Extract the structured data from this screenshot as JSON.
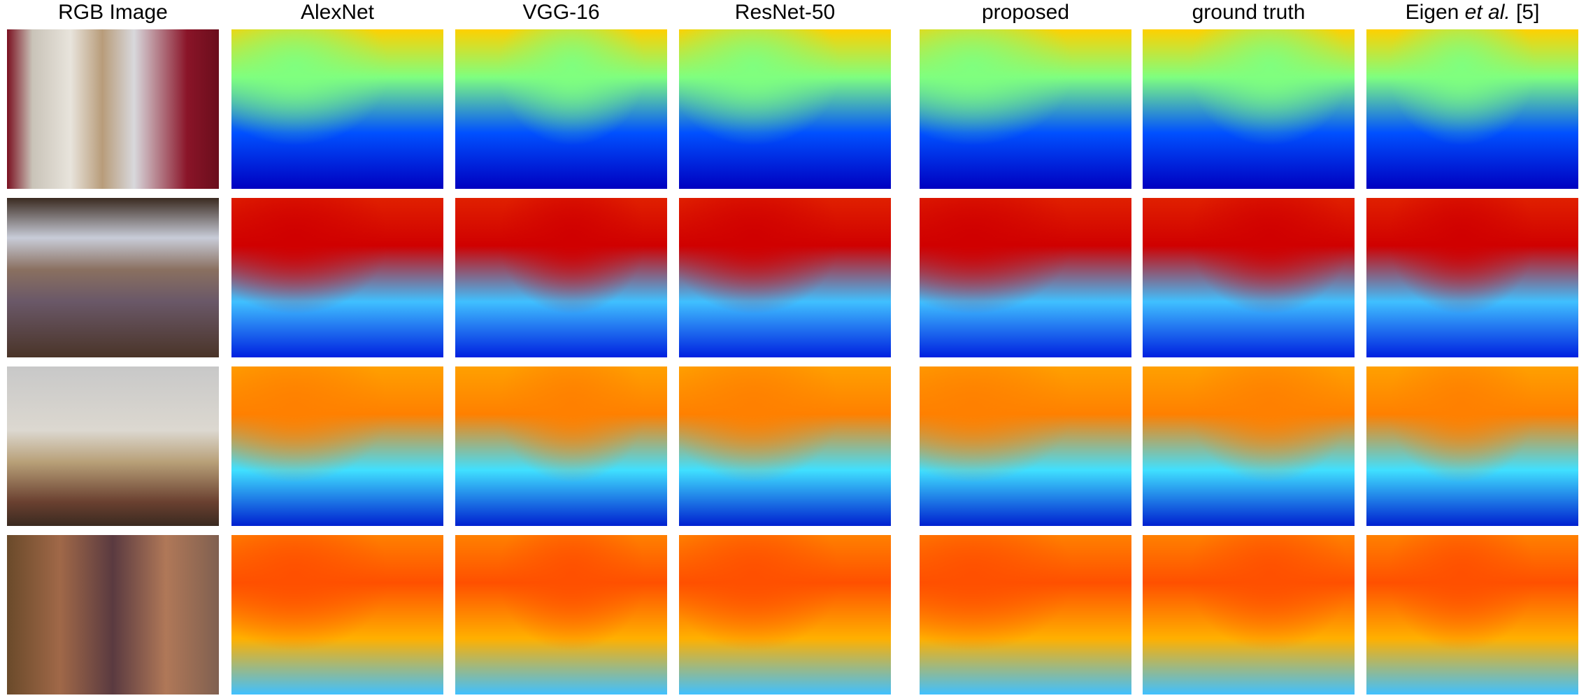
{
  "headers": [
    "RGB Image",
    "AlexNet",
    "VGG-16",
    "ResNet-50",
    "proposed",
    "ground truth"
  ],
  "last_header": {
    "author": "Eigen",
    "etal": "et al.",
    "reference": "[5]"
  }
}
